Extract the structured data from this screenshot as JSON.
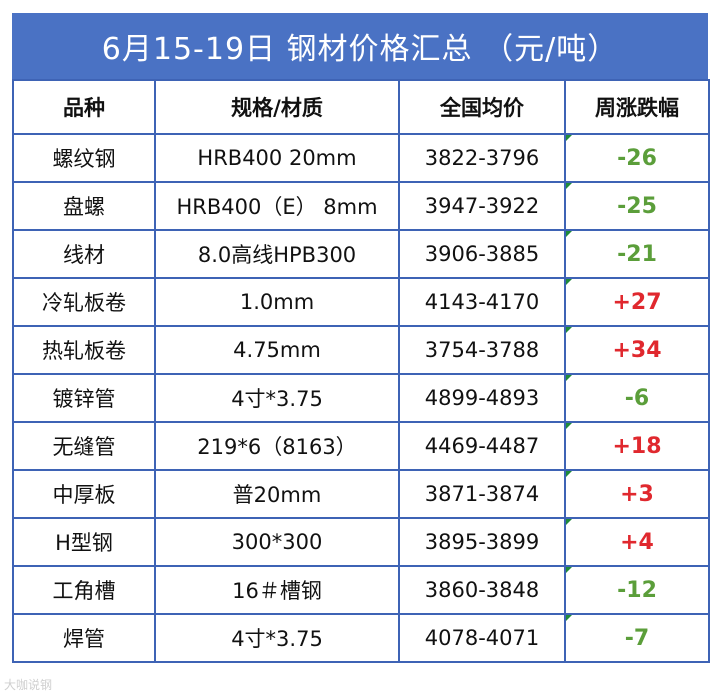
{
  "title": "6月15-19日 钢材价格汇总 （元/吨）",
  "headers": [
    "品种",
    "规格/材质",
    "全国均价",
    "周涨跌幅"
  ],
  "rows": [
    {
      "product": "螺纹钢",
      "spec": "HRB400 20mm",
      "price": "3822-3796",
      "change": "-26",
      "dir": "down"
    },
    {
      "product": "盘螺",
      "spec": "HRB400（E） 8mm",
      "price": "3947-3922",
      "change": "-25",
      "dir": "down"
    },
    {
      "product": "线材",
      "spec": "8.0高线HPB300",
      "price": "3906-3885",
      "change": "-21",
      "dir": "down"
    },
    {
      "product": "冷轧板卷",
      "spec": "1.0mm",
      "price": "4143-4170",
      "change": "+27",
      "dir": "up"
    },
    {
      "product": "热轧板卷",
      "spec": "4.75mm",
      "price": "3754-3788",
      "change": "+34",
      "dir": "up"
    },
    {
      "product": "镀锌管",
      "spec": "4寸*3.75",
      "price": "4899-4893",
      "change": "-6",
      "dir": "down"
    },
    {
      "product": "无缝管",
      "spec": "219*6（8163）",
      "price": "4469-4487",
      "change": "+18",
      "dir": "up"
    },
    {
      "product": "中厚板",
      "spec": "普20mm",
      "price": "3871-3874",
      "change": "+3",
      "dir": "up"
    },
    {
      "product": "H型钢",
      "spec": "300*300",
      "price": "3895-3899",
      "change": "+4",
      "dir": "up"
    },
    {
      "product": "工角槽",
      "spec": "16＃槽钢",
      "price": "3860-3848",
      "change": "-12",
      "dir": "down"
    },
    {
      "product": "焊管",
      "spec": "4寸*3.75",
      "price": "4078-4071",
      "change": "-7",
      "dir": "down"
    }
  ],
  "watermark": "大咖说钢",
  "colors": {
    "header_bg": "#4a72c4",
    "border": "#3e63b5",
    "down": "#5b9e3a",
    "up": "#e0282e"
  }
}
